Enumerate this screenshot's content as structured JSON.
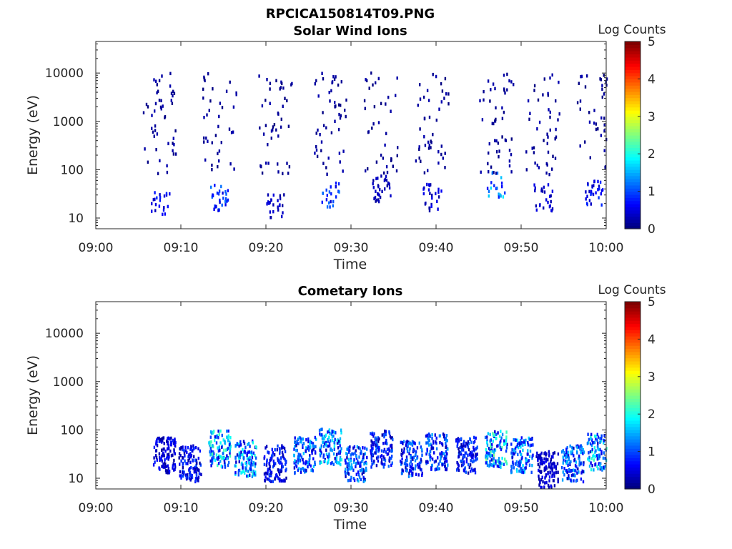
{
  "figure_title": "RPCICA150814T09.PNG",
  "chart_data": [
    {
      "type": "heatmap",
      "title": "Solar Wind Ions",
      "xlabel": "Time",
      "ylabel": "Energy (eV)",
      "y_scale": "log",
      "ylim": [
        6,
        45000
      ],
      "xlim": [
        "09:00",
        "10:00"
      ],
      "x_ticks": [
        "09:00",
        "09:10",
        "09:20",
        "09:30",
        "09:40",
        "09:50",
        "10:00"
      ],
      "y_ticks": [
        10,
        100,
        1000,
        10000
      ],
      "y_tick_labels": [
        "10",
        "100",
        "1000",
        "10000"
      ],
      "colorbar": {
        "label": "Log Counts",
        "range": [
          0,
          5
        ],
        "ticks": [
          "0",
          "1",
          "2",
          "3",
          "4",
          "5"
        ],
        "colormap": "jet"
      },
      "bursts": [
        {
          "time_min": 7.5,
          "core_energy_eV": 25,
          "peak_log_counts": 0.8
        },
        {
          "time_min": 14.5,
          "core_energy_eV": 30,
          "peak_log_counts": 1.2
        },
        {
          "time_min": 21.0,
          "core_energy_eV": 20,
          "peak_log_counts": 0.5
        },
        {
          "time_min": 27.5,
          "core_energy_eV": 35,
          "peak_log_counts": 1.3
        },
        {
          "time_min": 33.5,
          "core_energy_eV": 45,
          "peak_log_counts": 0.4
        },
        {
          "time_min": 39.5,
          "core_energy_eV": 30,
          "peak_log_counts": 0.6
        },
        {
          "time_min": 47.0,
          "core_energy_eV": 55,
          "peak_log_counts": 1.8
        },
        {
          "time_min": 52.5,
          "core_energy_eV": 30,
          "peak_log_counts": 0.6
        },
        {
          "time_min": 58.5,
          "core_energy_eV": 35,
          "peak_log_counts": 0.9
        }
      ]
    },
    {
      "type": "heatmap",
      "title": "Cometary Ions",
      "xlabel": "Time",
      "ylabel": "Energy (eV)",
      "y_scale": "log",
      "ylim": [
        6,
        45000
      ],
      "xlim": [
        "09:00",
        "10:00"
      ],
      "x_ticks": [
        "09:00",
        "09:10",
        "09:20",
        "09:30",
        "09:40",
        "09:50",
        "10:00"
      ],
      "y_ticks": [
        10,
        100,
        1000,
        10000
      ],
      "y_tick_labels": [
        "10",
        "100",
        "1000",
        "10000"
      ],
      "colorbar": {
        "label": "Log Counts",
        "range": [
          0,
          5
        ],
        "ticks": [
          "0",
          "1",
          "2",
          "3",
          "4",
          "5"
        ],
        "colormap": "jet"
      },
      "bursts": [
        {
          "time_min": 8.0,
          "core_energy_eV": 30,
          "peak_log_counts": 0.8
        },
        {
          "time_min": 11.0,
          "core_energy_eV": 20,
          "peak_log_counts": 1.0
        },
        {
          "time_min": 14.5,
          "core_energy_eV": 40,
          "peak_log_counts": 2.3
        },
        {
          "time_min": 17.5,
          "core_energy_eV": 25,
          "peak_log_counts": 2.1
        },
        {
          "time_min": 21.0,
          "core_energy_eV": 20,
          "peak_log_counts": 1.0
        },
        {
          "time_min": 24.5,
          "core_energy_eV": 30,
          "peak_log_counts": 1.8
        },
        {
          "time_min": 27.5,
          "core_energy_eV": 45,
          "peak_log_counts": 2.0
        },
        {
          "time_min": 30.5,
          "core_energy_eV": 20,
          "peak_log_counts": 1.6
        },
        {
          "time_min": 33.5,
          "core_energy_eV": 40,
          "peak_log_counts": 1.2
        },
        {
          "time_min": 37.0,
          "core_energy_eV": 25,
          "peak_log_counts": 1.4
        },
        {
          "time_min": 40.0,
          "core_energy_eV": 35,
          "peak_log_counts": 1.5
        },
        {
          "time_min": 43.5,
          "core_energy_eV": 30,
          "peak_log_counts": 1.1
        },
        {
          "time_min": 47.0,
          "core_energy_eV": 40,
          "peak_log_counts": 2.5
        },
        {
          "time_min": 50.0,
          "core_energy_eV": 30,
          "peak_log_counts": 1.8
        },
        {
          "time_min": 53.0,
          "core_energy_eV": 15,
          "peak_log_counts": 0.6
        },
        {
          "time_min": 56.0,
          "core_energy_eV": 20,
          "peak_log_counts": 1.6
        },
        {
          "time_min": 59.0,
          "core_energy_eV": 35,
          "peak_log_counts": 2.2
        }
      ]
    }
  ]
}
